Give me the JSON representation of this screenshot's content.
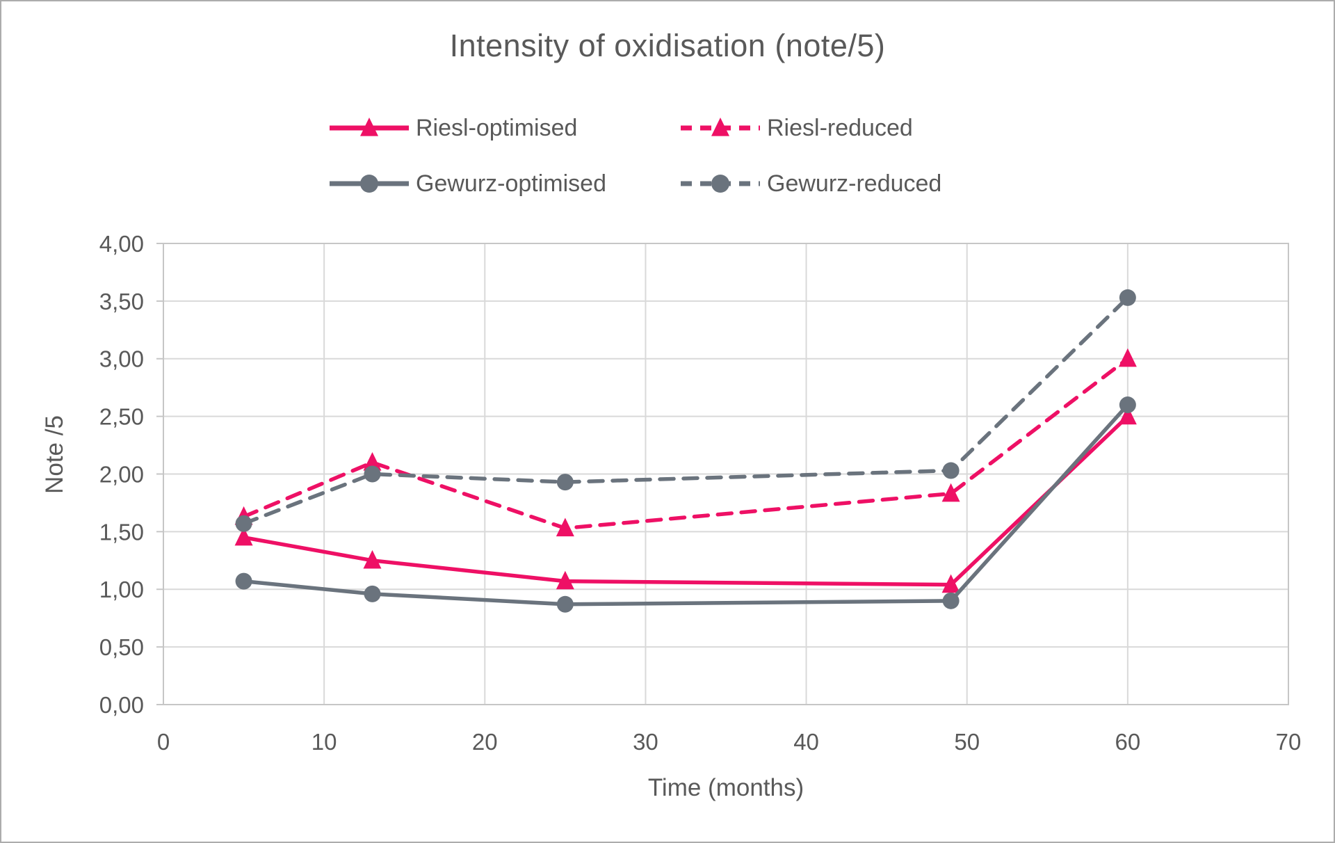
{
  "window": {
    "background": "#ffffff",
    "border_color": "#acacac"
  },
  "chart_data": {
    "type": "line",
    "title": "Intensity of oxidisation (note/5)",
    "xlabel": "Time (months)",
    "ylabel": "Note /5",
    "xlim": [
      0,
      70
    ],
    "ylim": [
      0,
      4
    ],
    "x_ticks": [
      0,
      10,
      20,
      30,
      40,
      50,
      60,
      70
    ],
    "x_tick_labels": [
      "0",
      "10",
      "20",
      "30",
      "40",
      "50",
      "60",
      "70"
    ],
    "y_ticks": [
      0,
      0.5,
      1,
      1.5,
      2,
      2.5,
      3,
      3.5,
      4
    ],
    "y_tick_labels": [
      "0,00",
      "0,50",
      "1,00",
      "1,50",
      "2,00",
      "2,50",
      "3,00",
      "3,50",
      "4,00"
    ],
    "grid": true,
    "legend_position": "top-center-two-rows",
    "x": [
      5,
      13,
      25,
      49,
      60
    ],
    "series": [
      {
        "name": "Riesl-optimised",
        "color": "#ee1065",
        "style": "solid",
        "marker": "triangle",
        "values": [
          1.45,
          1.25,
          1.07,
          1.04,
          2.5
        ]
      },
      {
        "name": "Riesl-reduced",
        "color": "#ee1065",
        "style": "dashed",
        "marker": "triangle",
        "values": [
          1.63,
          2.1,
          1.53,
          1.83,
          3.0
        ]
      },
      {
        "name": "Gewurz-optimised",
        "color": "#6a737d",
        "style": "solid",
        "marker": "circle",
        "values": [
          1.07,
          0.96,
          0.87,
          0.9,
          2.6
        ]
      },
      {
        "name": "Gewurz-reduced",
        "color": "#6a737d",
        "style": "dashed",
        "marker": "circle",
        "values": [
          1.57,
          2.0,
          1.93,
          2.03,
          3.53
        ]
      }
    ],
    "colors": {
      "text": "#595959",
      "gridline": "#d9d9d9",
      "axis": "#c6c6c6",
      "riesl": "#ee1065",
      "gewurz": "#6a737d"
    }
  }
}
